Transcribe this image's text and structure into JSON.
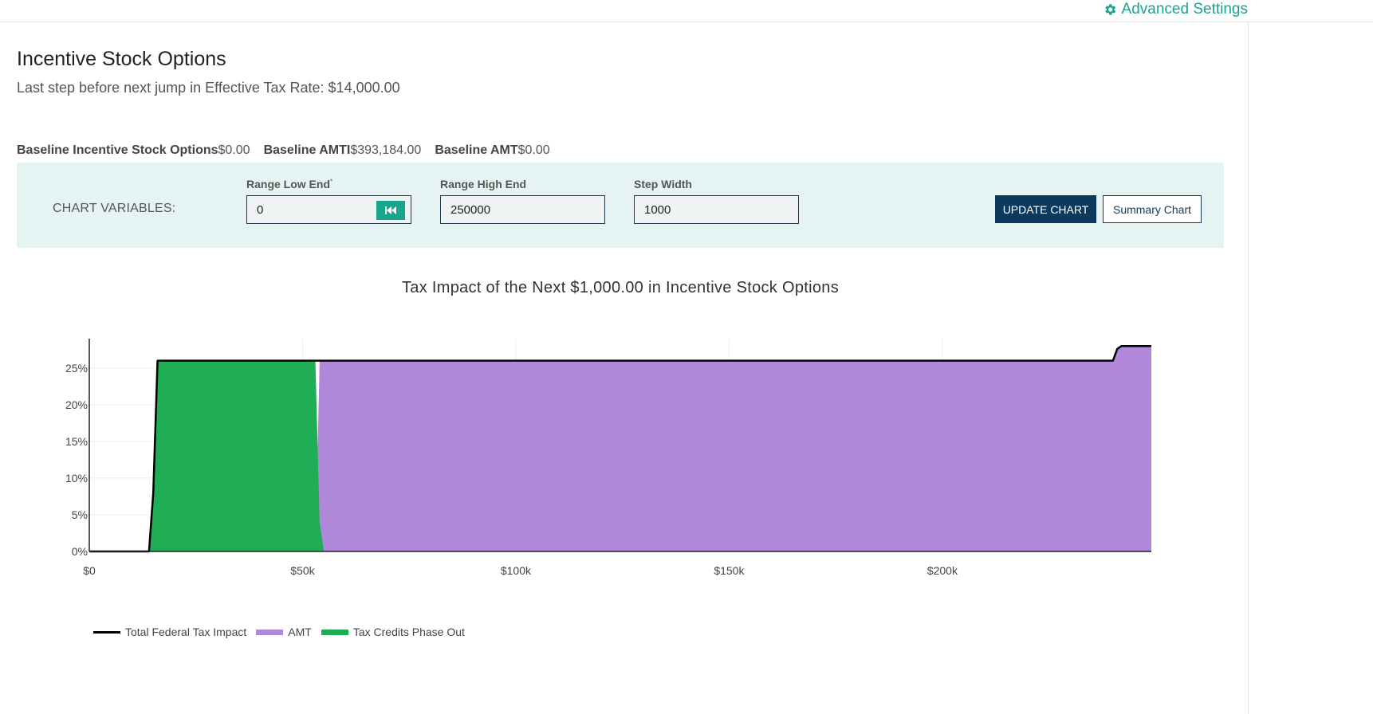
{
  "header": {
    "advanced_settings_label": "Advanced Settings",
    "advanced_settings_icon": "gear-icon"
  },
  "page": {
    "title": "Incentive Stock Options",
    "subtitle": "Last step before next jump in Effective Tax Rate: $14,000.00"
  },
  "baselines": [
    {
      "label": "Baseline Incentive Stock Options",
      "value": "$0.00"
    },
    {
      "label": "Baseline AMTI",
      "value": "$393,184.00"
    },
    {
      "label": "Baseline AMT",
      "value": "$0.00"
    }
  ],
  "chart_variables": {
    "section_label": "CHART VARIABLES:",
    "range_low": {
      "label": "Range Low End",
      "required_mark": "*",
      "value": "0",
      "reset_icon": "skip-to-start-icon"
    },
    "range_high": {
      "label": "Range High End",
      "value": "250000"
    },
    "step_width": {
      "label": "Step Width",
      "value": "1000"
    },
    "update_button": "UPDATE CHART",
    "summary_button": "Summary Chart"
  },
  "colors": {
    "accent": "#17a58e",
    "navy": "#0d3a5c",
    "panel_bg": "#e5f4f2",
    "amt": "#b188d9",
    "credits": "#1fad55",
    "total_line": "#000000"
  },
  "chart_data": {
    "type": "area",
    "title": "Tax Impact of the Next $1,000.00 in Incentive Stock Options",
    "xlabel": "",
    "ylabel": "",
    "xlim": [
      0,
      249000
    ],
    "ylim": [
      0,
      0.29
    ],
    "x_ticks": [
      0,
      50000,
      100000,
      150000,
      200000
    ],
    "x_tick_labels": [
      "$0",
      "$50k",
      "$100k",
      "$150k",
      "$200k"
    ],
    "y_ticks": [
      0,
      0.05,
      0.1,
      0.15,
      0.2,
      0.25
    ],
    "y_tick_labels": [
      "0%",
      "5%",
      "10%",
      "15%",
      "20%",
      "25%"
    ],
    "grid": true,
    "legend_position": "bottom-left",
    "series": [
      {
        "name": "Total Federal Tax Impact",
        "type": "line",
        "color": "#000000",
        "x": [
          0,
          14000,
          15000,
          16000,
          240000,
          241000,
          242000,
          249000
        ],
        "y": [
          0,
          0,
          0.08,
          0.26,
          0.26,
          0.276,
          0.28,
          0.28
        ]
      },
      {
        "name": "AMT",
        "type": "area",
        "color": "#b188d9",
        "x": [
          0,
          53000,
          54000,
          55000,
          240000,
          241000,
          242000,
          249000
        ],
        "y": [
          0,
          0,
          0.26,
          0.26,
          0.26,
          0.276,
          0.28,
          0.28
        ]
      },
      {
        "name": "Tax Credits Phase Out",
        "type": "area",
        "color": "#1fad55",
        "x": [
          0,
          14000,
          15000,
          16000,
          53000,
          54000,
          55000,
          249000
        ],
        "y": [
          0,
          0,
          0.08,
          0.26,
          0.26,
          0.04,
          0,
          0
        ]
      }
    ]
  }
}
